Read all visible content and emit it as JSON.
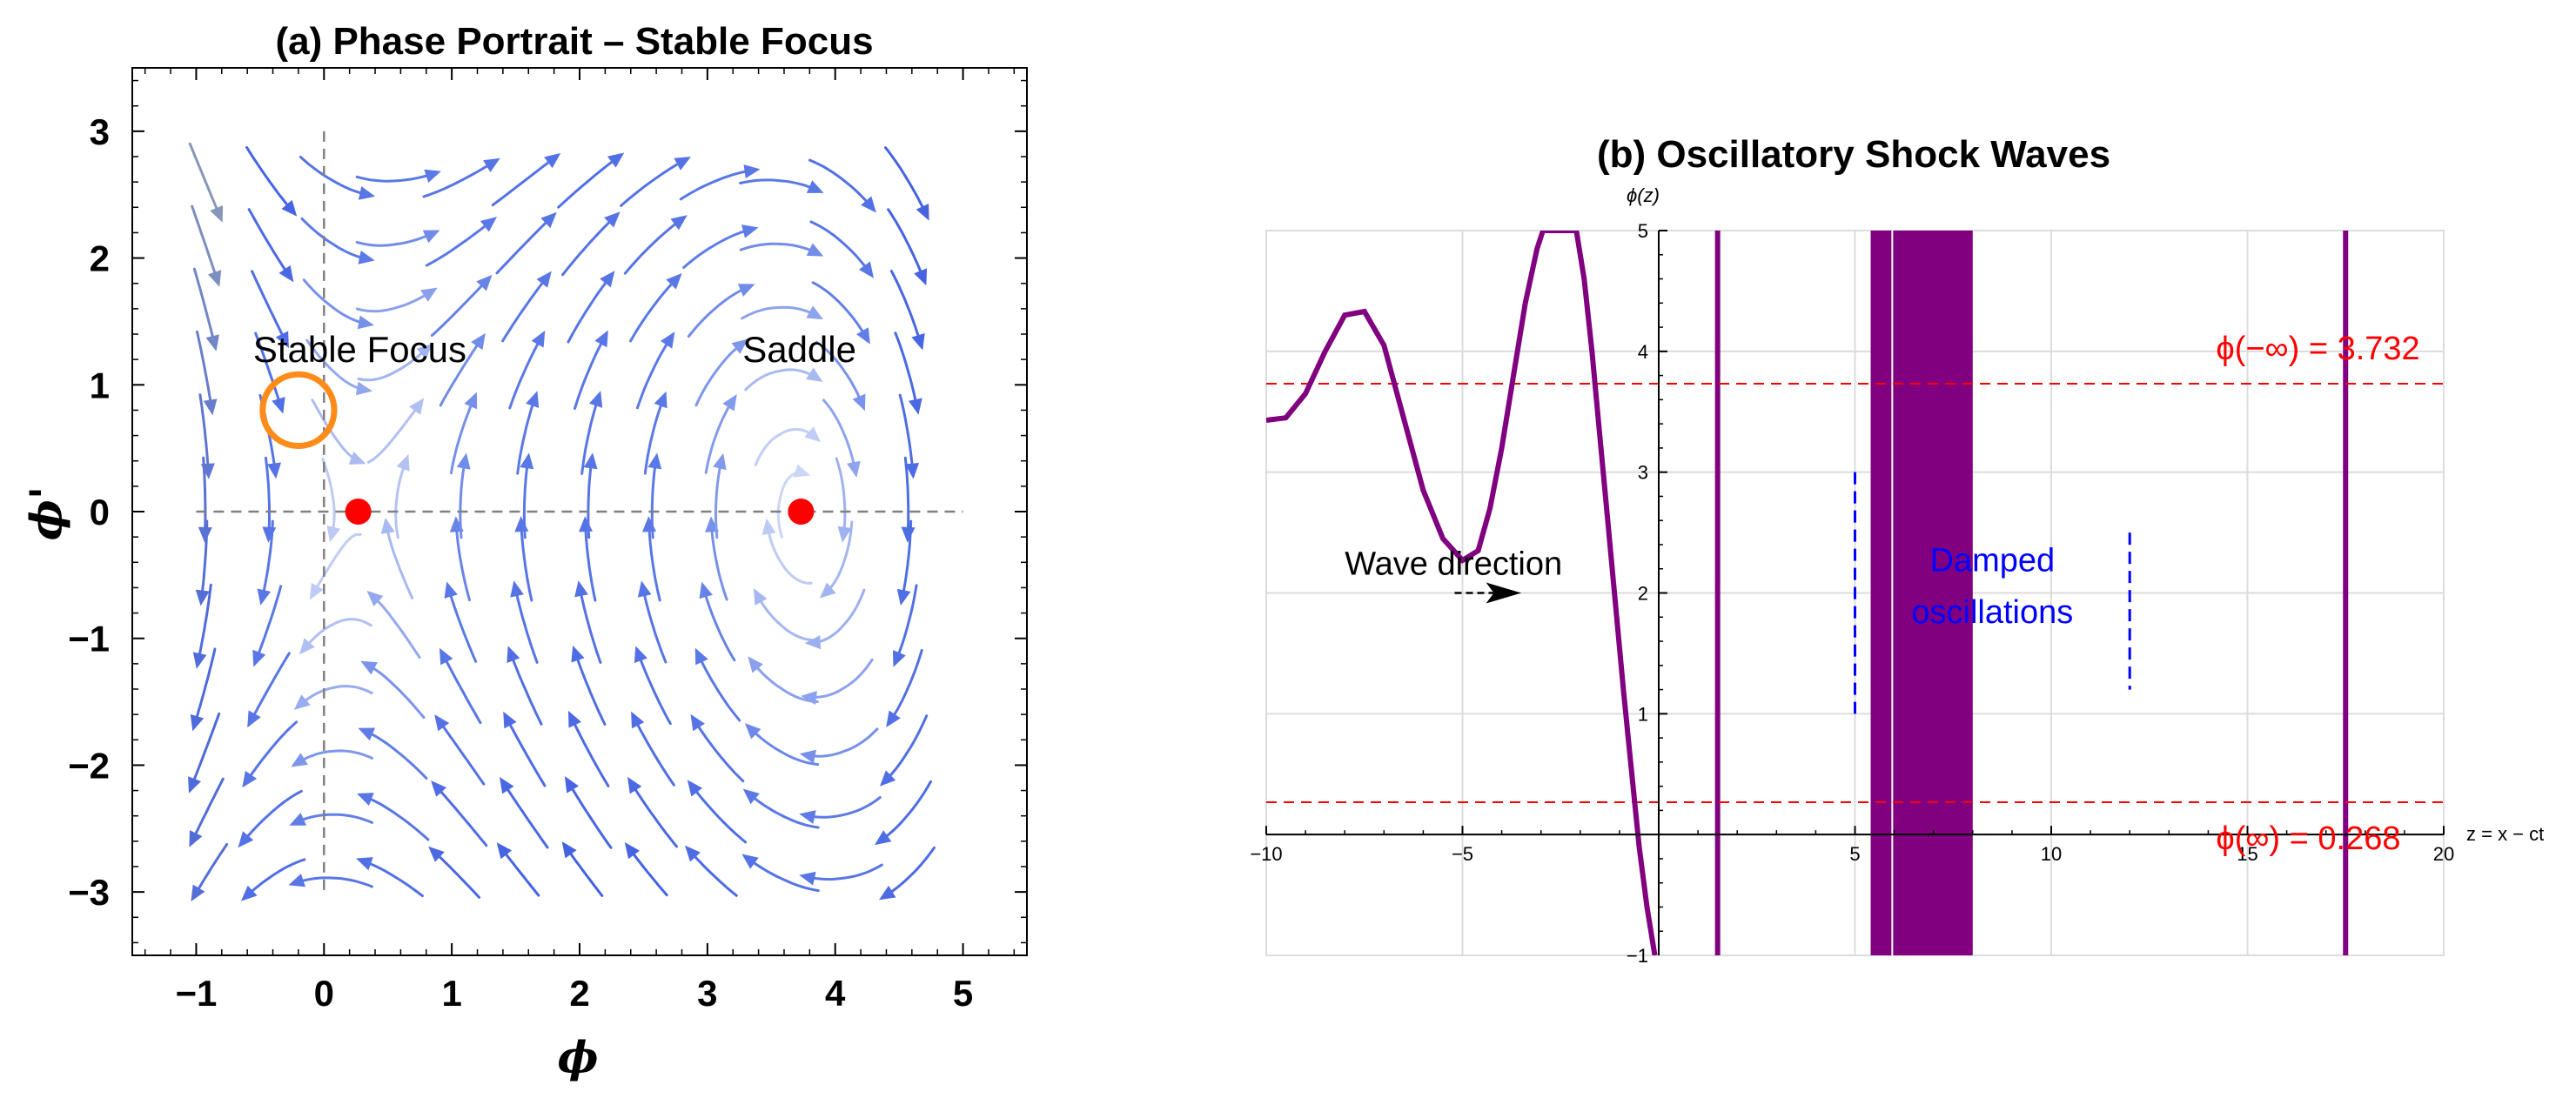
{
  "chart_data": [
    {
      "type": "stream",
      "title": "(a) Phase Portrait – Stable Focus",
      "xlabel": "ϕ",
      "ylabel": "ϕ'",
      "xlim": [
        -1.5,
        5.5
      ],
      "ylim": [
        -3.5,
        3.5
      ],
      "x_ticks": [
        -1,
        0,
        1,
        2,
        3,
        4,
        5
      ],
      "y_ticks": [
        -3,
        -2,
        -1,
        0,
        1,
        2,
        3
      ],
      "x_tick_labels": [
        "−1",
        "0",
        "1",
        "2",
        "3",
        "4",
        "5"
      ],
      "y_tick_labels": [
        "−3",
        "−2",
        "−1",
        "0",
        "1",
        "2",
        "3"
      ],
      "equilibria": [
        {
          "x": 0.268,
          "y": 0,
          "color": "#ff0000"
        },
        {
          "x": 3.732,
          "y": 0,
          "color": "#ff0000"
        }
      ],
      "focus_marker": {
        "x": -0.2,
        "y": 0.8,
        "radius": 0.28,
        "color": "#ff8c1a"
      },
      "annotations": [
        {
          "text": "Stable Focus",
          "x": 0.28,
          "y": 1.18
        },
        {
          "text": "Saddle",
          "x": 3.72,
          "y": 1.18
        }
      ],
      "field": "ϕ' = y, y' = -0.3 y - (ϕ - 0.268)(ϕ - 3.732)",
      "dashed_lines": {
        "x": 0,
        "y": 0,
        "color": "#808080"
      },
      "colormap": [
        "#e6ecfb",
        "#5a78e6",
        "#fff176",
        "#e08a1e"
      ]
    },
    {
      "type": "line",
      "title": "(b) Oscillatory Shock Waves",
      "xlabel": "z = x − ct",
      "ylabel": "ϕ(z)",
      "xlim": [
        -10,
        20
      ],
      "ylim": [
        -1,
        5
      ],
      "x_ticks": [
        -10,
        -5,
        5,
        10,
        15,
        20
      ],
      "y_ticks": [
        1,
        2,
        3,
        4,
        5
      ],
      "x_tick_labels": [
        "−10",
        "−5",
        "5",
        "10",
        "15",
        "20"
      ],
      "y_tick_labels": [
        "1",
        "2",
        "3",
        "4",
        "5"
      ],
      "y_tick_labels_extra": [
        "−1"
      ],
      "series": [
        {
          "name": "ϕ(z)",
          "color": "#800080",
          "x": [
            -10,
            -9.5,
            -9,
            -8.5,
            -8,
            -7.5,
            -7,
            -6.5,
            -6,
            -5.5,
            -5,
            -4.6,
            -4.3,
            -4,
            -3.7,
            -3.4,
            -3.1,
            -2.95,
            -2.1,
            -1.9,
            -1.7,
            -1.5,
            -1.3,
            -1.1,
            -0.9,
            -0.7,
            -0.5,
            -0.3,
            -0.1
          ],
          "y": [
            3.43,
            3.45,
            3.65,
            4.0,
            4.3,
            4.33,
            4.05,
            3.45,
            2.85,
            2.45,
            2.27,
            2.35,
            2.7,
            3.2,
            3.8,
            4.4,
            4.85,
            5.0,
            5.0,
            4.6,
            4.0,
            3.3,
            2.6,
            1.9,
            1.2,
            0.55,
            -0.1,
            -0.6,
            -1.0
          ]
        }
      ],
      "vertical_bars": [
        {
          "x": 1.5,
          "width": 0.15
        },
        {
          "x0": 5.4,
          "x1": 8.0
        },
        {
          "x": 17.5,
          "width": 0.15
        }
      ],
      "white_gaps": [
        5.95
      ],
      "hlines": [
        {
          "y": 3.732,
          "label": "ϕ(−∞) = 3.732",
          "color": "#ff0000"
        },
        {
          "y": 0.268,
          "label": "ϕ(∞) = 0.268",
          "color": "#ff0000"
        }
      ],
      "blue_dashes": [
        {
          "x": 5.0,
          "y0": 1.0,
          "y1": 3.0
        },
        {
          "x": 12.0,
          "y0": 1.2,
          "y1": 2.5
        }
      ],
      "annotations": [
        {
          "text": "Wave direction",
          "color": "#000000"
        },
        {
          "text": "Damped",
          "color": "#0000ff"
        },
        {
          "text": "oscillations",
          "color": "#0000ff"
        }
      ]
    }
  ]
}
